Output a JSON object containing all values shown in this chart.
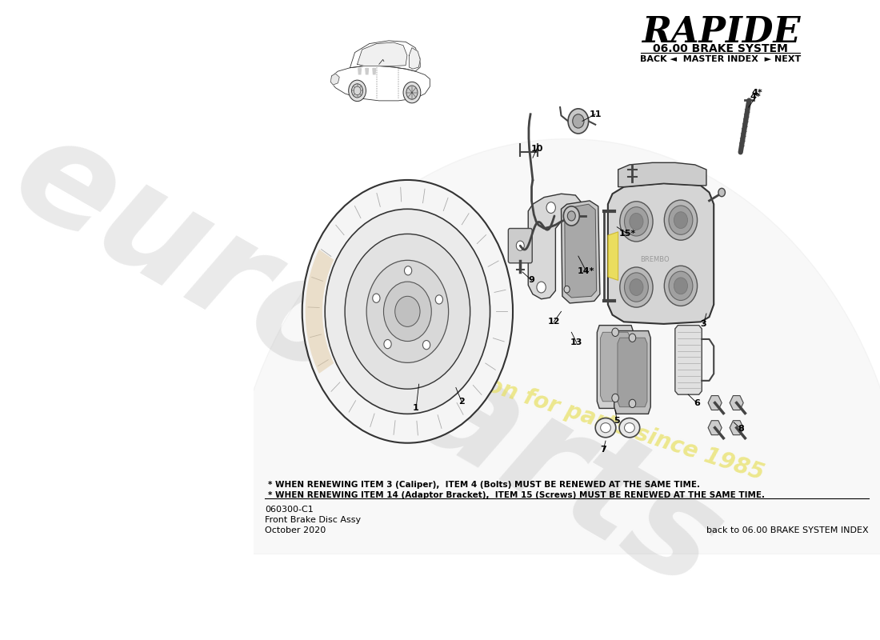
{
  "title": "RAPIDE",
  "subtitle": "06.00 BRAKE SYSTEM",
  "nav": "BACK ◄  MASTER INDEX  ► NEXT",
  "bg_color": "#ffffff",
  "doc_number": "060300-C1",
  "doc_name": "Front Brake Disc Assy",
  "doc_date": "October 2020",
  "back_link": "back to 06.00 BRAKE SYSTEM INDEX",
  "note1": "* WHEN RENEWING ITEM 3 (Caliper),  ITEM 4 (Bolts) MUST BE RENEWED AT THE SAME TIME.",
  "note2": "* WHEN RENEWING ITEM 14 (Adaptor Bracket),  ITEM 15 (Screws) MUST BE RENEWED AT THE SAME TIME.",
  "wm_color": "#d0d0d0",
  "wm_color2": "#e8e060",
  "edge_color": "#333333",
  "line_color": "#444444"
}
